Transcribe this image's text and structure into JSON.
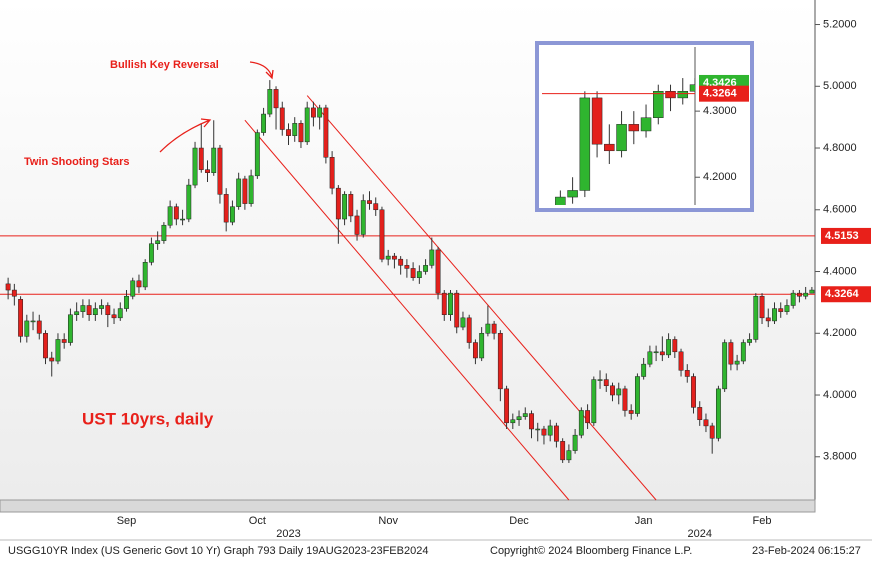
{
  "chart_data": {
    "type": "candlestick",
    "up_color": "#2fb52f",
    "down_color": "#e3201c",
    "open": [
      4.36,
      4.34,
      4.31,
      4.19,
      4.24,
      4.24,
      4.2,
      4.12,
      4.11,
      4.18,
      4.17,
      4.26,
      4.27,
      4.29,
      4.26,
      4.28,
      4.29,
      4.26,
      4.25,
      4.28,
      4.32,
      4.37,
      4.35,
      4.43,
      4.49,
      4.5,
      4.55,
      4.61,
      4.57,
      4.57,
      4.68,
      4.8,
      4.73,
      4.72,
      4.8,
      4.65,
      4.56,
      4.61,
      4.7,
      4.62,
      4.71,
      4.85,
      4.91,
      4.99,
      4.93,
      4.86,
      4.84,
      4.88,
      4.82,
      4.93,
      4.9,
      4.93,
      4.77,
      4.67,
      4.57,
      4.65,
      4.58,
      4.52,
      4.63,
      4.62,
      4.6,
      4.44,
      4.45,
      4.44,
      4.42,
      4.41,
      4.38,
      4.4,
      4.42,
      4.47,
      4.33,
      4.26,
      4.33,
      4.22,
      4.25,
      4.17,
      4.12,
      4.2,
      4.23,
      4.2,
      4.02,
      3.91,
      3.92,
      3.93,
      3.94,
      3.89,
      3.89,
      3.87,
      3.9,
      3.85,
      3.79,
      3.82,
      3.87,
      3.95,
      3.91,
      4.05,
      4.05,
      4.03,
      4.0,
      4.02,
      3.95,
      3.94,
      4.06,
      4.1,
      4.14,
      4.14,
      4.13,
      4.18,
      4.14,
      4.08,
      4.06,
      3.96,
      3.92,
      3.9,
      3.86,
      4.02,
      4.17,
      4.1,
      4.11,
      4.17,
      4.18,
      4.32,
      4.25,
      4.24,
      4.28,
      4.27,
      4.29,
      4.33,
      4.32,
      4.33
    ],
    "high": [
      4.38,
      4.36,
      4.32,
      4.26,
      4.27,
      4.26,
      4.21,
      4.14,
      4.2,
      4.2,
      4.28,
      4.3,
      4.31,
      4.31,
      4.3,
      4.31,
      4.3,
      4.28,
      4.3,
      4.34,
      4.38,
      4.39,
      4.44,
      4.51,
      4.53,
      4.56,
      4.63,
      4.62,
      4.6,
      4.7,
      4.82,
      4.88,
      4.76,
      4.89,
      4.81,
      4.67,
      4.63,
      4.72,
      4.71,
      4.73,
      4.86,
      4.93,
      5.02,
      5.0,
      4.95,
      4.88,
      4.9,
      4.89,
      4.95,
      4.95,
      4.94,
      4.94,
      4.79,
      4.68,
      4.66,
      4.66,
      4.6,
      4.65,
      4.66,
      4.64,
      4.61,
      4.47,
      4.46,
      4.45,
      4.44,
      4.43,
      4.42,
      4.44,
      4.51,
      4.48,
      4.34,
      4.34,
      4.34,
      4.27,
      4.26,
      4.18,
      4.22,
      4.29,
      4.24,
      4.21,
      4.03,
      3.94,
      3.95,
      3.96,
      3.95,
      3.91,
      3.9,
      3.92,
      3.91,
      3.86,
      3.84,
      3.89,
      3.96,
      3.97,
      4.06,
      4.08,
      4.07,
      4.04,
      4.04,
      4.03,
      3.97,
      4.07,
      4.12,
      4.16,
      4.16,
      4.19,
      4.2,
      4.19,
      4.15,
      4.1,
      4.07,
      3.98,
      3.94,
      3.91,
      4.03,
      4.18,
      4.18,
      4.13,
      4.18,
      4.2,
      4.33,
      4.33,
      4.28,
      4.3,
      4.3,
      4.31,
      4.34,
      4.34,
      4.35,
      4.35
    ],
    "low": [
      4.31,
      4.29,
      4.17,
      4.17,
      4.21,
      4.18,
      4.1,
      4.06,
      4.1,
      4.15,
      4.16,
      4.24,
      4.25,
      4.24,
      4.24,
      4.26,
      4.22,
      4.23,
      4.24,
      4.27,
      4.31,
      4.33,
      4.34,
      4.42,
      4.47,
      4.49,
      4.54,
      4.55,
      4.55,
      4.56,
      4.67,
      4.72,
      4.69,
      4.71,
      4.62,
      4.53,
      4.55,
      4.6,
      4.6,
      4.61,
      4.7,
      4.84,
      4.9,
      4.86,
      4.84,
      4.81,
      4.82,
      4.8,
      4.81,
      4.87,
      4.86,
      4.75,
      4.65,
      4.49,
      4.55,
      4.56,
      4.5,
      4.51,
      4.6,
      4.58,
      4.43,
      4.42,
      4.41,
      4.39,
      4.38,
      4.37,
      4.36,
      4.39,
      4.41,
      4.31,
      4.24,
      4.24,
      4.2,
      4.21,
      4.15,
      4.1,
      4.11,
      4.19,
      4.18,
      3.98,
      3.89,
      3.89,
      3.9,
      3.92,
      3.86,
      3.85,
      3.84,
      3.85,
      3.83,
      3.78,
      3.78,
      3.81,
      3.86,
      3.89,
      3.9,
      4.02,
      4.01,
      3.98,
      3.97,
      3.93,
      3.92,
      3.93,
      4.05,
      4.09,
      4.11,
      4.11,
      4.12,
      4.12,
      4.06,
      4.04,
      3.94,
      3.9,
      3.88,
      3.81,
      3.85,
      4.01,
      4.08,
      4.08,
      4.1,
      4.16,
      4.17,
      4.23,
      4.22,
      4.23,
      4.25,
      4.26,
      4.28,
      4.3,
      4.31,
      4.33
    ],
    "close": [
      4.34,
      4.32,
      4.19,
      4.24,
      4.24,
      4.2,
      4.12,
      4.11,
      4.18,
      4.17,
      4.26,
      4.27,
      4.29,
      4.26,
      4.28,
      4.29,
      4.26,
      4.25,
      4.28,
      4.32,
      4.37,
      4.35,
      4.43,
      4.49,
      4.5,
      4.55,
      4.61,
      4.57,
      4.57,
      4.68,
      4.8,
      4.73,
      4.72,
      4.8,
      4.65,
      4.56,
      4.61,
      4.7,
      4.62,
      4.71,
      4.85,
      4.91,
      4.99,
      4.93,
      4.86,
      4.84,
      4.88,
      4.82,
      4.93,
      4.9,
      4.93,
      4.77,
      4.67,
      4.57,
      4.65,
      4.58,
      4.52,
      4.63,
      4.62,
      4.6,
      4.44,
      4.45,
      4.44,
      4.42,
      4.41,
      4.38,
      4.4,
      4.42,
      4.47,
      4.33,
      4.26,
      4.33,
      4.22,
      4.25,
      4.17,
      4.12,
      4.2,
      4.23,
      4.2,
      4.02,
      3.91,
      3.92,
      3.93,
      3.94,
      3.89,
      3.89,
      3.87,
      3.9,
      3.85,
      3.79,
      3.82,
      3.87,
      3.95,
      3.91,
      4.05,
      4.05,
      4.03,
      4.0,
      4.02,
      3.95,
      3.94,
      4.06,
      4.1,
      4.14,
      4.14,
      4.13,
      4.18,
      4.14,
      4.08,
      4.06,
      3.96,
      3.92,
      3.9,
      3.86,
      4.02,
      4.17,
      4.1,
      4.11,
      4.17,
      4.18,
      4.32,
      4.25,
      4.24,
      4.28,
      4.27,
      4.29,
      4.33,
      4.32,
      4.33,
      4.34
    ],
    "ylim": [
      3.66,
      5.26
    ],
    "yticks": [
      {
        "value": 3.8,
        "label": "3.8000"
      },
      {
        "value": 4.0,
        "label": "4.0000"
      },
      {
        "value": 4.2,
        "label": "4.2000"
      },
      {
        "value": 4.4,
        "label": "4.4000"
      },
      {
        "value": 4.6,
        "label": "4.6000"
      },
      {
        "value": 4.8,
        "label": "4.8000"
      },
      {
        "value": 5.0,
        "label": "5.0000"
      },
      {
        "value": 5.2,
        "label": "5.2000"
      }
    ],
    "xticks": [
      {
        "value": 19,
        "label": "Sep"
      },
      {
        "value": 40,
        "label": "Oct"
      },
      {
        "value": 61,
        "label": "Nov"
      },
      {
        "value": 82,
        "label": "Dec"
      },
      {
        "value": 102,
        "label": "Jan"
      },
      {
        "value": 121,
        "label": "Feb"
      }
    ],
    "years": [
      {
        "value": 45,
        "label": "2023"
      },
      {
        "value": 111,
        "label": "2024"
      }
    ],
    "levels": [
      4.5153,
      4.3264
    ],
    "last_price": 4.3426,
    "channels": [
      {
        "x": [
          38,
          90
        ],
        "y": [
          4.89,
          3.66
        ]
      },
      {
        "x": [
          48,
          104
        ],
        "y": [
          4.97,
          3.66
        ]
      }
    ],
    "annotations": [
      "Bullish Key Reversal",
      "Twin Shooting Stars",
      "UST 10yrs, daily"
    ],
    "inset": {
      "xlim": [
        116.5,
        129
      ],
      "ylim": [
        4.158,
        4.397
      ],
      "yticks": [
        {
          "value": 4.2,
          "label": "4.2000"
        },
        {
          "value": 4.3,
          "label": "4.3000"
        }
      ]
    },
    "footer": [
      "USGG10YR Index (US Generic Govt 10 Yr) Graph 793  Daily 19AUG2023-23FEB2024",
      "Copyright© 2024 Bloomberg Finance L.P.",
      "23-Feb-2024 06:15:27"
    ]
  }
}
